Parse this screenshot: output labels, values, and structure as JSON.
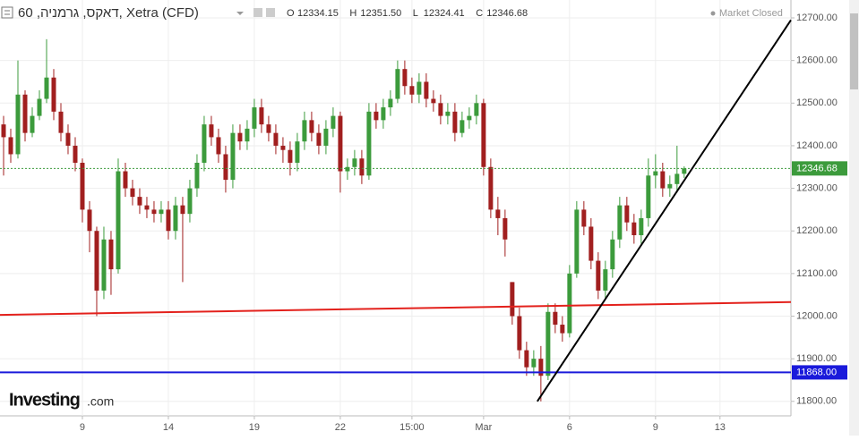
{
  "chart_data": {
    "type": "candlestick",
    "title": "דאקס, גרמניה, 60, Xetra (CFD)",
    "ohlc_labels": [
      {
        "key": "O",
        "label": "12334.15"
      },
      {
        "key": "H",
        "label": "12351.50"
      },
      {
        "key": "L",
        "label": "12324.41"
      },
      {
        "key": "C",
        "label": "12346.68"
      }
    ],
    "status": "Market Closed",
    "logo": {
      "brand": "Investing",
      "suffix": ".com"
    },
    "up_color": "#3c9b3c",
    "down_color": "#a11f1f",
    "open": [
      12450,
      12420,
      12380,
      12520,
      12430,
      12470,
      12510,
      12560,
      12480,
      12430,
      12400,
      12360,
      12250,
      12200,
      12060,
      12180,
      12110,
      12340,
      12300,
      12280,
      12260,
      12250,
      12240,
      12250,
      12200,
      12260,
      12240,
      12300,
      12360,
      12450,
      12420,
      12380,
      12320,
      12430,
      12410,
      12440,
      12490,
      12450,
      12430,
      12400,
      12390,
      12360,
      12410,
      12460,
      12430,
      12400,
      12440,
      12470,
      12340,
      12350,
      12370,
      12330,
      12480,
      12460,
      12490,
      12510,
      12580,
      12540,
      12520,
      12550,
      12510,
      12500,
      12470,
      12480,
      12430,
      12460,
      12470,
      12500,
      12350,
      12250,
      12230,
      12080,
      12000,
      11920,
      11880,
      11900,
      11860,
      12010,
      11980,
      11960,
      12100,
      12250,
      12210,
      12130,
      12060,
      12110,
      12180,
      12260,
      12220,
      12190,
      12230,
      12330,
      12340,
      12300,
      12310,
      12334.15
    ],
    "high": [
      12470,
      12440,
      12600,
      12530,
      12490,
      12530,
      12650,
      12580,
      12500,
      12450,
      12420,
      12370,
      12270,
      12210,
      12210,
      12200,
      12370,
      12360,
      12320,
      12300,
      12280,
      12270,
      12270,
      12270,
      12280,
      12280,
      12320,
      12380,
      12470,
      12470,
      12440,
      12400,
      12450,
      12450,
      12460,
      12510,
      12510,
      12470,
      12450,
      12420,
      12410,
      12430,
      12480,
      12480,
      12450,
      12460,
      12490,
      12480,
      12370,
      12390,
      12390,
      12500,
      12500,
      12510,
      12530,
      12600,
      12600,
      12560,
      12570,
      12570,
      12530,
      12520,
      12500,
      12500,
      12480,
      12490,
      12520,
      12510,
      12370,
      12280,
      12250,
      12080,
      12020,
      11940,
      11920,
      11930,
      12030,
      12030,
      12000,
      12120,
      12270,
      12270,
      12230,
      12150,
      12130,
      12200,
      12280,
      12280,
      12240,
      12250,
      12370,
      12380,
      12360,
      12330,
      12400,
      12351.5
    ],
    "low": [
      12330,
      12360,
      12370,
      12410,
      12420,
      12460,
      12500,
      12460,
      12410,
      12380,
      12340,
      12220,
      12150,
      12000,
      12040,
      12050,
      12100,
      12280,
      12260,
      12240,
      12230,
      12220,
      12220,
      12180,
      12180,
      12080,
      12220,
      12280,
      12340,
      12400,
      12360,
      12290,
      12300,
      12390,
      12390,
      12420,
      12430,
      12410,
      12380,
      12360,
      12330,
      12340,
      12390,
      12410,
      12380,
      12380,
      12420,
      12290,
      12320,
      12330,
      12310,
      12320,
      12440,
      12440,
      12470,
      12500,
      12520,
      12500,
      12500,
      12490,
      12480,
      12450,
      12450,
      12410,
      12420,
      12440,
      12450,
      12330,
      12230,
      12190,
      12140,
      11980,
      11900,
      11860,
      11860,
      11800,
      11850,
      11960,
      11940,
      11950,
      12090,
      12190,
      12110,
      12040,
      12040,
      12090,
      12160,
      12200,
      12170,
      12170,
      12210,
      12300,
      12280,
      12280,
      12290,
      12324.41
    ],
    "close": [
      12420,
      12380,
      12520,
      12430,
      12470,
      12510,
      12560,
      12480,
      12430,
      12400,
      12360,
      12250,
      12200,
      12060,
      12180,
      12110,
      12340,
      12300,
      12280,
      12260,
      12250,
      12240,
      12250,
      12200,
      12260,
      12240,
      12300,
      12360,
      12450,
      12420,
      12380,
      12320,
      12430,
      12410,
      12440,
      12490,
      12450,
      12430,
      12400,
      12390,
      12360,
      12410,
      12460,
      12430,
      12400,
      12440,
      12470,
      12340,
      12350,
      12370,
      12330,
      12480,
      12460,
      12490,
      12510,
      12580,
      12540,
      12520,
      12550,
      12510,
      12500,
      12470,
      12480,
      12430,
      12460,
      12470,
      12500,
      12350,
      12250,
      12230,
      12180,
      12000,
      11920,
      11880,
      11900,
      11860,
      12010,
      11980,
      11960,
      12100,
      12250,
      12210,
      12130,
      12060,
      12110,
      12180,
      12260,
      12220,
      12190,
      12230,
      12330,
      12340,
      12300,
      12310,
      12334,
      12346.68
    ],
    "xlim": [
      -0.5,
      109.9
    ],
    "xticks": [
      {
        "value": 11,
        "label": "9"
      },
      {
        "value": 23,
        "label": "14"
      },
      {
        "value": 35,
        "label": "19"
      },
      {
        "value": 47,
        "label": "22"
      },
      {
        "value": 57,
        "label": "15:00"
      },
      {
        "value": 67,
        "label": "Mar"
      },
      {
        "value": 79,
        "label": "6"
      },
      {
        "value": 91,
        "label": "9"
      },
      {
        "value": 100,
        "label": "13"
      }
    ],
    "ylim": [
      11766,
      12742
    ],
    "yticks": [
      {
        "value": 11800,
        "label": "11800.00"
      },
      {
        "value": 11900,
        "label": "11900.00"
      },
      {
        "value": 12000,
        "label": "12000.00"
      },
      {
        "value": 12100,
        "label": "12100.00"
      },
      {
        "value": 12200,
        "label": "12200.00"
      },
      {
        "value": 12300,
        "label": "12300.00"
      },
      {
        "value": 12400,
        "label": "12400.00"
      },
      {
        "value": 12500,
        "label": "12500.00"
      },
      {
        "value": 12600,
        "label": "12600.00"
      },
      {
        "value": 12700,
        "label": "12700.00"
      }
    ],
    "price_line": {
      "value": 12346.68,
      "label": "12346.68",
      "color": "#3c9b3c"
    },
    "level_line": {
      "value": 11868,
      "label": "11868.00",
      "color": "#1a1adb"
    },
    "trend_lines": [
      {
        "color": "#e3211c",
        "x": [
          -0.5,
          109.9
        ],
        "y": [
          12003,
          12033
        ]
      },
      {
        "color": "#000000",
        "x": [
          74.5,
          109.9
        ],
        "y": [
          11800,
          12695
        ]
      }
    ]
  }
}
